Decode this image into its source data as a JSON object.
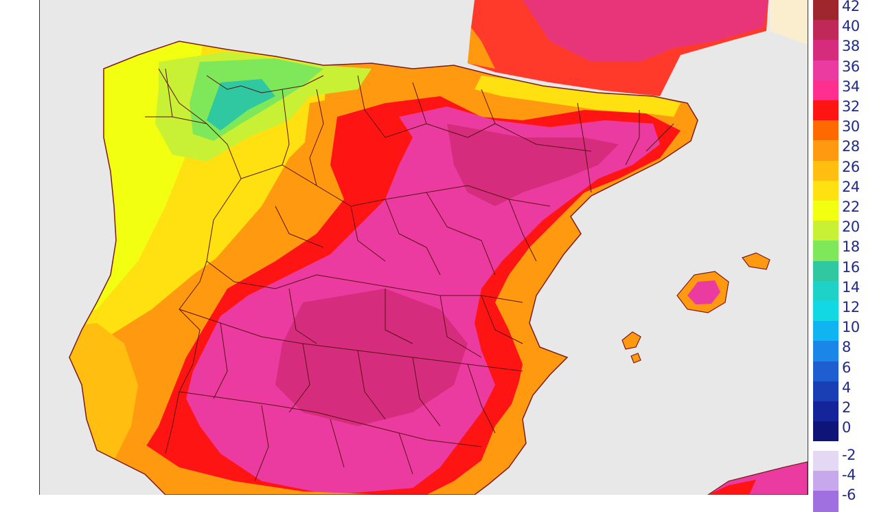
{
  "legend": {
    "main_scale": [
      {
        "value": "42",
        "color": "#a0262e"
      },
      {
        "value": "40",
        "color": "#c1285a"
      },
      {
        "value": "38",
        "color": "#d62c7e"
      },
      {
        "value": "36",
        "color": "#ec3ba0"
      },
      {
        "value": "34",
        "color": "#ff2f8f"
      },
      {
        "value": "32",
        "color": "#ff1414"
      },
      {
        "value": "30",
        "color": "#ff6a00"
      },
      {
        "value": "28",
        "color": "#ff9a10"
      },
      {
        "value": "26",
        "color": "#ffbe10"
      },
      {
        "value": "24",
        "color": "#ffe010"
      },
      {
        "value": "22",
        "color": "#f3ff10"
      },
      {
        "value": "20",
        "color": "#c8f034"
      },
      {
        "value": "18",
        "color": "#7ee85a"
      },
      {
        "value": "16",
        "color": "#2fc8a0"
      },
      {
        "value": "14",
        "color": "#1ed2c8"
      },
      {
        "value": "12",
        "color": "#12d8e4"
      },
      {
        "value": "10",
        "color": "#10b4f0"
      },
      {
        "value": "8",
        "color": "#1a86e8"
      },
      {
        "value": "6",
        "color": "#1e5ed0"
      },
      {
        "value": "4",
        "color": "#1a3eb4"
      },
      {
        "value": "2",
        "color": "#14249a"
      },
      {
        "value": "0",
        "color": "#0e1478"
      }
    ],
    "negative_scale": [
      {
        "value": "-2",
        "color": "#e4d8f4"
      },
      {
        "value": "-4",
        "color": "#c8a8ec"
      },
      {
        "value": "-6",
        "color": "#a070e0"
      }
    ]
  },
  "map": {
    "sea_color": "#e8e8e8",
    "france_land_color": "#fbeecf",
    "border_color": "#5a1010"
  }
}
